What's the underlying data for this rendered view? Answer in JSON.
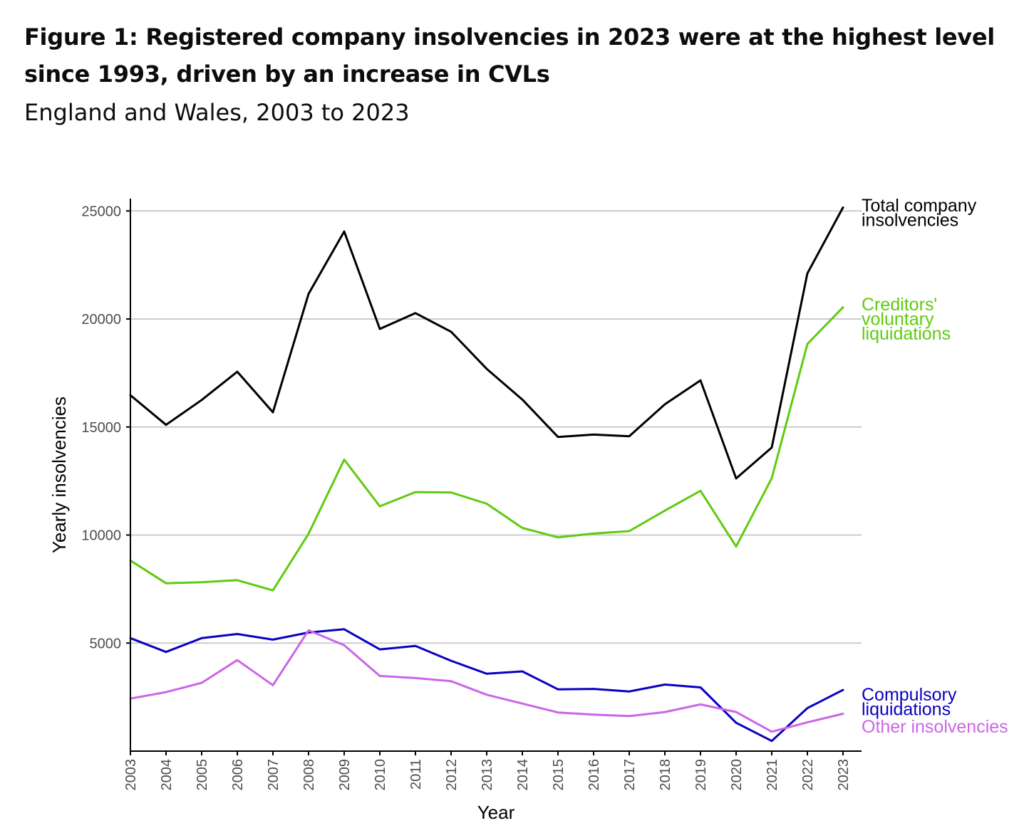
{
  "header": {
    "title": "Figure 1: Registered company insolvencies in 2023 were at the highest level since 1993, driven by an increase in CVLs",
    "subtitle": "England and Wales, 2003 to 2023"
  },
  "chart_data": {
    "type": "line",
    "title": "Figure 1: Registered company insolvencies in 2023 were at the highest level since 1993, driven by an increase in CVLs",
    "subtitle": "England and Wales, 2003 to 2023",
    "xlabel": "Year",
    "ylabel": "Yearly insolvencies",
    "x": [
      "2003",
      "2004",
      "2005",
      "2006",
      "2007",
      "2008",
      "2009",
      "2010",
      "2011",
      "2012",
      "2013",
      "2014",
      "2015",
      "2016",
      "2017",
      "2018",
      "2019",
      "2020",
      "2021",
      "2022",
      "2023"
    ],
    "yticks": [
      5000,
      10000,
      15000,
      20000,
      25000
    ],
    "ylim": [
      0,
      25600
    ],
    "grid": "horizontal",
    "legend": "direct labels at right end of lines",
    "series": [
      {
        "name": "Total company insolvencies",
        "label_lines": [
          "Total company",
          "insolvencies"
        ],
        "color": "#000000",
        "values": [
          16470,
          15100,
          16250,
          17560,
          15680,
          21160,
          24050,
          19540,
          20270,
          19410,
          17690,
          16270,
          14540,
          14650,
          14570,
          16050,
          17160,
          12620,
          14050,
          22110,
          25160
        ]
      },
      {
        "name": "Creditors' voluntary liquidations",
        "label_lines": [
          "Creditors'",
          "voluntary",
          "liquidations"
        ],
        "color": "#5fcb0f",
        "values": [
          8820,
          7770,
          7820,
          7910,
          7440,
          10060,
          13490,
          11330,
          11990,
          11970,
          11450,
          10330,
          9890,
          10070,
          10180,
          11130,
          12050,
          9470,
          12630,
          18840,
          20540
        ]
      },
      {
        "name": "Compulsory liquidations",
        "label_lines": [
          "Compulsory",
          "liquidations"
        ],
        "color": "#0a00c2",
        "values": [
          5230,
          4590,
          5230,
          5420,
          5160,
          5490,
          5640,
          4710,
          4870,
          4180,
          3580,
          3690,
          2860,
          2880,
          2760,
          3080,
          2950,
          1310,
          470,
          1990,
          2830
        ]
      },
      {
        "name": "Other insolvencies",
        "label_lines": [
          "Other insolvencies"
        ],
        "color": "#cc66e6",
        "values": [
          2430,
          2730,
          3160,
          4210,
          3050,
          5590,
          4900,
          3480,
          3380,
          3240,
          2610,
          2200,
          1790,
          1690,
          1620,
          1810,
          2160,
          1810,
          900,
          1330,
          1730
        ]
      }
    ]
  }
}
